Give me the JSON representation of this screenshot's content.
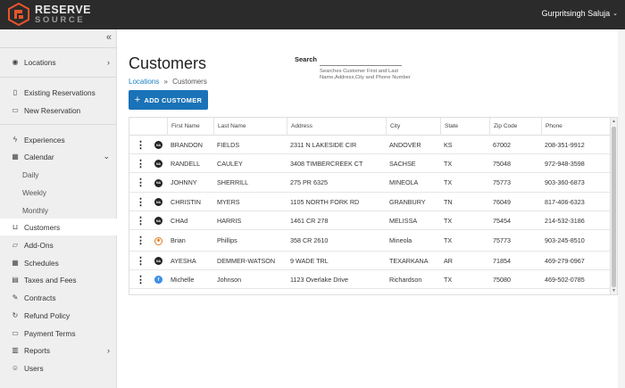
{
  "brand": {
    "line1": "RESERVE",
    "line2": "SOURCE",
    "accent": "#e8552a"
  },
  "user": {
    "name": "Gurpritsingh Saluja",
    "chevron": "⌄"
  },
  "sidebar": {
    "collapse_icon": "«",
    "items": [
      {
        "label": "Locations",
        "icon": "location-pin-icon",
        "arrow": "›"
      },
      {
        "label": "Existing Reservations",
        "icon": "document-icon"
      },
      {
        "label": "New Reservation",
        "icon": "ticket-icon"
      },
      {
        "label": "Experiences",
        "icon": "lightning-icon"
      },
      {
        "label": "Calendar",
        "icon": "calendar-icon",
        "arrow": "⌄"
      },
      {
        "label": "Daily"
      },
      {
        "label": "Weekly"
      },
      {
        "label": "Monthly"
      },
      {
        "label": "Customers",
        "icon": "cart-icon",
        "active": true
      },
      {
        "label": "Add-Ons",
        "icon": "folder-icon"
      },
      {
        "label": "Schedules",
        "icon": "calendar-grid-icon"
      },
      {
        "label": "Taxes and Fees",
        "icon": "receipt-icon"
      },
      {
        "label": "Contracts",
        "icon": "contract-icon"
      },
      {
        "label": "Refund Policy",
        "icon": "refund-icon"
      },
      {
        "label": "Payment Terms",
        "icon": "card-icon"
      },
      {
        "label": "Reports",
        "icon": "chart-icon",
        "arrow": "›"
      },
      {
        "label": "Users",
        "icon": "user-icon"
      }
    ]
  },
  "main": {
    "title": "Customers",
    "breadcrumb": {
      "link": "Locations",
      "sep": "»",
      "current": "Customers"
    },
    "add_button": {
      "plus": "+",
      "label": "ADD CUSTOMER"
    },
    "search": {
      "label": "Search",
      "value": "",
      "hint": "Searches Customer First and Last Name,Address,City and Phone Number"
    }
  },
  "table": {
    "columns": [
      "First Name",
      "Last Name",
      "Address",
      "City",
      "State",
      "Zip Code",
      "Phone"
    ],
    "rows": [
      {
        "avatar": "NA",
        "avatar_style": "dark",
        "first": "BRANDON",
        "last": "FIELDS",
        "address": "2311 N LAKESIDE CIR",
        "city": "ANDOVER",
        "state": "KS",
        "zip": "67002",
        "phone": "208-351-9912"
      },
      {
        "avatar": "NA",
        "avatar_style": "dark",
        "first": "RANDELL",
        "last": "CAULEY",
        "address": "3408 TIMBERCREEK CT",
        "city": "SACHSE",
        "state": "TX",
        "zip": "75048",
        "phone": "972-948-3598"
      },
      {
        "avatar": "NA",
        "avatar_style": "dark",
        "first": "JOHNNY",
        "last": "SHERRILL",
        "address": "275 PR 6325",
        "city": "MINEOLA",
        "state": "TX",
        "zip": "75773",
        "phone": "903-360-6873"
      },
      {
        "avatar": "NA",
        "avatar_style": "dark",
        "first": "CHRISTIN",
        "last": "MYERS",
        "address": "1105 NORTH FORK RD",
        "city": "GRANBURY",
        "state": "TN",
        "zip": "76049",
        "phone": "817-406-6323"
      },
      {
        "avatar": "NA",
        "avatar_style": "dark",
        "first": "CHAd",
        "last": "HARRIS",
        "address": "1461 CR 278",
        "city": "MELISSA",
        "state": "TX",
        "zip": "75454",
        "phone": "214-532-3186"
      },
      {
        "avatar": "✱",
        "avatar_style": "orange",
        "first": "Brian",
        "last": "Phillips",
        "address": "358 CR 2610",
        "city": "Mineola",
        "state": "TX",
        "zip": "75773",
        "phone": "903-245-8510"
      },
      {
        "avatar": "NA",
        "avatar_style": "dark",
        "first": "AYESHA",
        "last": "DEMMER-WATSON",
        "address": "9 WADE TRL",
        "city": "TEXARKANA",
        "state": "AR",
        "zip": "71854",
        "phone": "469-279-0967"
      },
      {
        "avatar": "f",
        "avatar_style": "blue",
        "first": "Michelle",
        "last": "Johnson",
        "address": "1123 Overlake Drive",
        "city": "Richardson",
        "state": "TX",
        "zip": "75080",
        "phone": "469-502-0785"
      }
    ]
  }
}
